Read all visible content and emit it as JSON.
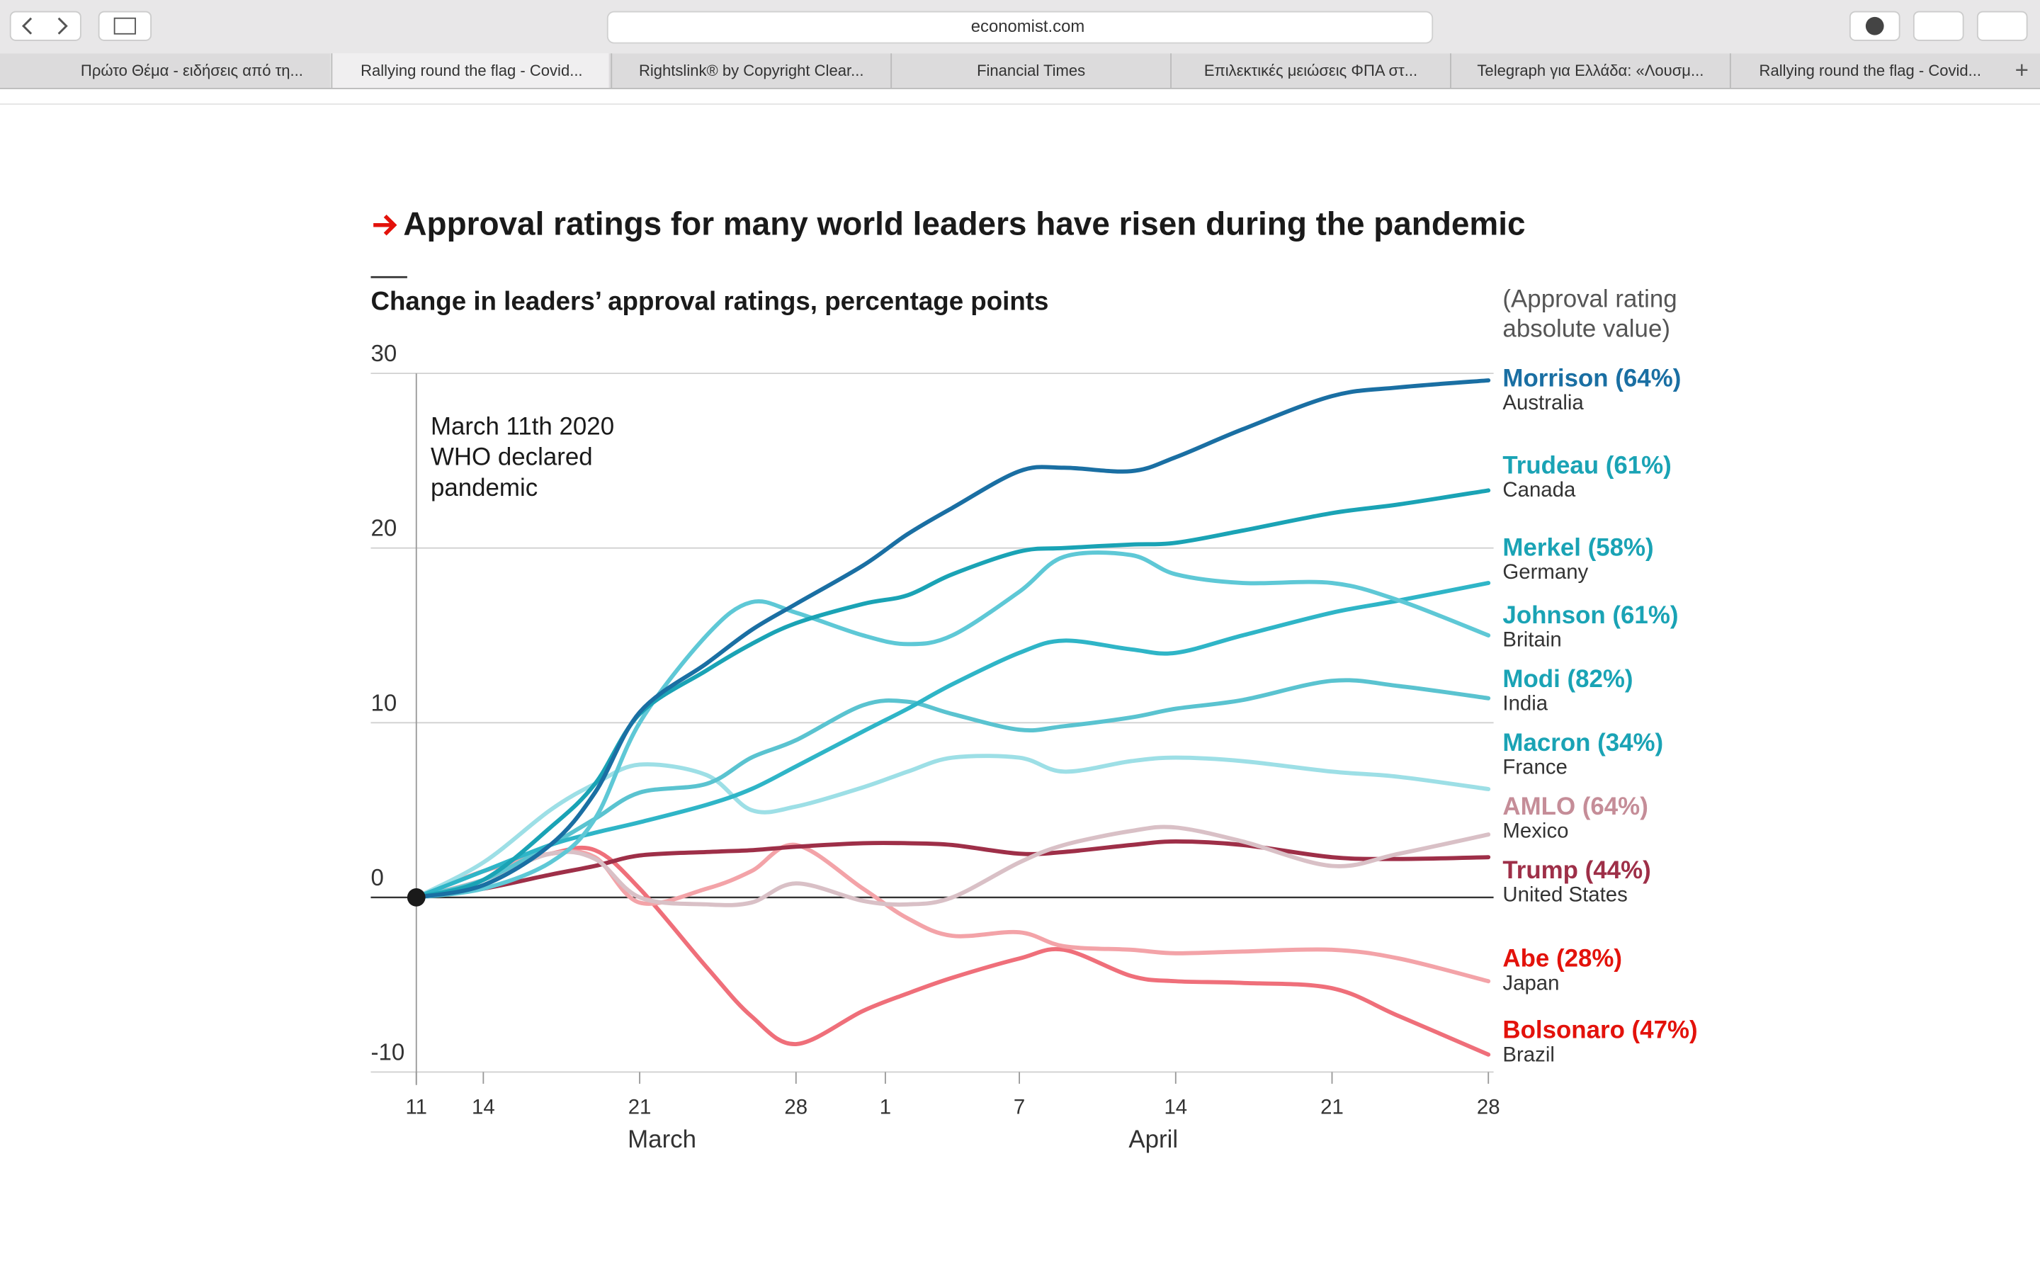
{
  "browser": {
    "url": "economist.com",
    "tabs": [
      "Πρώτο Θέμα - ειδήσεις από τη...",
      "Rallying round the flag - Covid...",
      "Rightslink® by Copyright Clear...",
      "Financial Times",
      "Επιλεκτικές μειώσεις ΦΠΑ στ...",
      "Telegraph για Ελλάδα: «Λουσμ...",
      "Rallying round the flag - Covid..."
    ]
  },
  "chart_data": {
    "type": "line",
    "title": "Approval ratings for many world leaders have risen during the pandemic",
    "subtitle": "Change in leaders’ approval ratings, percentage points",
    "legend_title": [
      "(Approval rating",
      "absolute value)"
    ],
    "annotation": [
      "March 11th 2020",
      "WHO declared",
      "pandemic"
    ],
    "x": [
      "03-11",
      "03-14",
      "03-17",
      "03-19",
      "03-21",
      "03-24",
      "03-26",
      "03-28",
      "03-31",
      "04-02",
      "04-04",
      "04-07",
      "04-09",
      "04-12",
      "04-14",
      "04-17",
      "04-21",
      "04-24",
      "04-28"
    ],
    "xlim": [
      "03-11",
      "04-28"
    ],
    "xticks": [
      {
        "value": "03-11",
        "label": "11"
      },
      {
        "value": "03-14",
        "label": "14"
      },
      {
        "value": "03-21",
        "label": "21"
      },
      {
        "value": "03-28",
        "label": "28"
      },
      {
        "value": "04-01",
        "label": "1"
      },
      {
        "value": "04-07",
        "label": "7"
      },
      {
        "value": "04-14",
        "label": "14"
      },
      {
        "value": "04-21",
        "label": "21"
      },
      {
        "value": "04-28",
        "label": "28"
      }
    ],
    "x_groups": [
      {
        "value": "03-22",
        "label": "March"
      },
      {
        "value": "04-13",
        "label": "April"
      }
    ],
    "ylim": [
      -10,
      30
    ],
    "yticks": [
      -10,
      0,
      10,
      20,
      30
    ],
    "grid": true,
    "series": [
      {
        "name": "Morrison (64%)",
        "country": "Australia",
        "color": "#1a6fa3",
        "label_color": "#1a6fa3",
        "values": [
          0,
          0.7,
          3,
          6,
          10.6,
          13.4,
          15.3,
          16.8,
          19,
          20.8,
          22.3,
          24.4,
          24.6,
          24.4,
          25.2,
          26.8,
          28.7,
          29.2,
          29.6
        ]
      },
      {
        "name": "Trudeau (61%)",
        "country": "Canada",
        "color": "#1aa3b5",
        "label_color": "#1aa3b5",
        "values": [
          0,
          1,
          4,
          6.5,
          10.5,
          13,
          14.5,
          15.7,
          16.8,
          17.3,
          18.5,
          19.8,
          20,
          20.2,
          20.3,
          21,
          22,
          22.5,
          23.3
        ]
      },
      {
        "name": "Merkel (58%)",
        "country": "Germany",
        "color": "#5ec8d6",
        "label_color": "#1aa3b5",
        "values": [
          0,
          0.5,
          2,
          4.5,
          10,
          15,
          16.9,
          16.3,
          15,
          14.5,
          15,
          17.5,
          19.5,
          19.6,
          18.5,
          18,
          18,
          17,
          15
        ]
      },
      {
        "name": "Johnson (61%)",
        "country": "Britain",
        "color": "#2fb5c7",
        "label_color": "#1aa3b5",
        "values": [
          0,
          1.5,
          3,
          3.7,
          4.3,
          5.3,
          6.2,
          7.5,
          9.5,
          10.8,
          12.2,
          14,
          14.7,
          14.2,
          14,
          15,
          16.3,
          17,
          18
        ]
      },
      {
        "name": "Modi (82%)",
        "country": "India",
        "color": "#5ac3d0",
        "label_color": "#1aa3b5",
        "values": [
          0,
          1,
          3,
          4.5,
          6,
          6.5,
          8,
          9,
          11,
          11.2,
          10.5,
          9.6,
          9.8,
          10.3,
          10.8,
          11.3,
          12.4,
          12.1,
          11.4
        ]
      },
      {
        "name": "Macron (34%)",
        "country": "France",
        "color": "#9ddfe6",
        "label_color": "#1aa3b5",
        "values": [
          0,
          2,
          5,
          6.5,
          7.6,
          7,
          5,
          5.2,
          6.3,
          7.2,
          8,
          8,
          7.2,
          7.8,
          8,
          7.8,
          7.2,
          6.9,
          6.2
        ]
      },
      {
        "name": "AMLO (64%)",
        "country": "Mexico",
        "color": "#d9c0c6",
        "label_color": "#c58d98",
        "values": [
          0,
          1,
          2.5,
          2.2,
          0,
          -0.4,
          -0.3,
          0.8,
          -0.2,
          -0.4,
          0,
          2,
          3,
          3.8,
          4,
          3.2,
          1.8,
          2.5,
          3.6
        ]
      },
      {
        "name": "Trump (44%)",
        "country": "United States",
        "color": "#9e2f48",
        "label_color": "#9e2f48",
        "values": [
          0,
          0.5,
          1.3,
          1.8,
          2.4,
          2.6,
          2.7,
          2.9,
          3.1,
          3.1,
          3,
          2.5,
          2.6,
          3,
          3.2,
          3,
          2.3,
          2.2,
          2.3
        ]
      },
      {
        "name": "Abe (28%)",
        "country": "Japan",
        "color": "#f3a3a8",
        "label_color": "#e3120b",
        "values": [
          0,
          1.5,
          2.5,
          2.3,
          -0.3,
          0.5,
          1.5,
          3,
          0.5,
          -1.2,
          -2.2,
          -2,
          -2.8,
          -3,
          -3.2,
          -3.1,
          -3,
          -3.5,
          -4.8
        ]
      },
      {
        "name": "Bolsonaro (47%)",
        "country": "Brazil",
        "color": "#ef6f7a",
        "label_color": "#e3120b",
        "values": [
          0,
          1.5,
          2.5,
          2.7,
          0.5,
          -4,
          -6.8,
          -8.4,
          -6.5,
          -5.5,
          -4.6,
          -3.5,
          -3,
          -4.5,
          -4.8,
          -4.9,
          -5.2,
          -6.8,
          -9
        ]
      }
    ]
  }
}
